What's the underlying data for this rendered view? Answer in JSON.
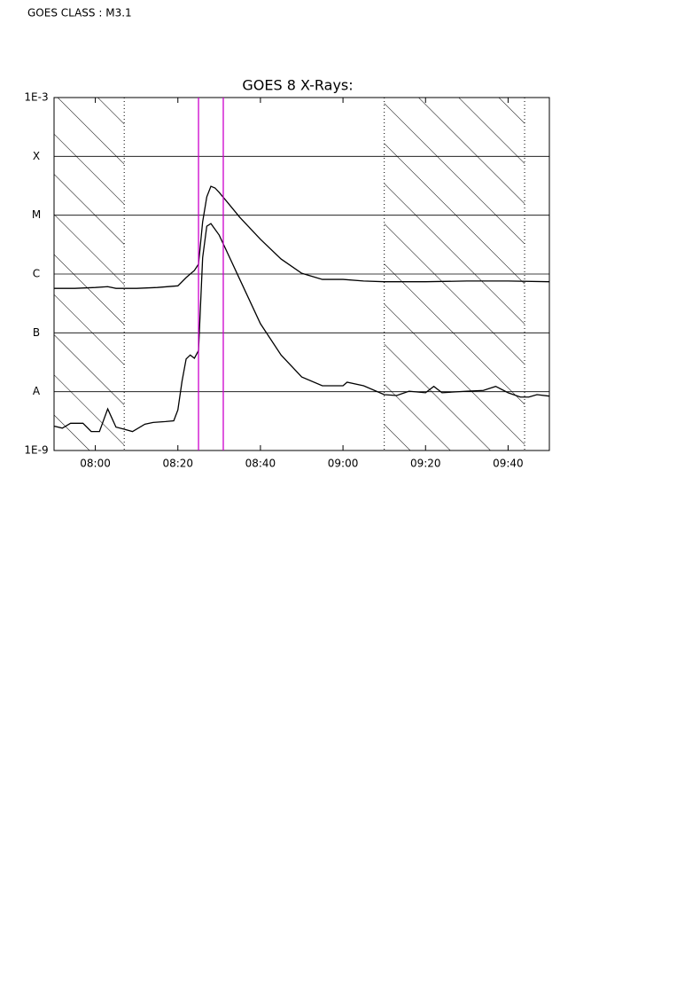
{
  "chart_data": {
    "type": "line",
    "header": "GOES CLASS : M3.1",
    "title": "GOES 8 X-Rays:",
    "log_y": true,
    "grid": true,
    "xlim": [
      "07:50",
      "09:50"
    ],
    "xticks": [
      "08:00",
      "08:20",
      "08:40",
      "09:00",
      "09:20",
      "09:40"
    ],
    "ylim": [
      1e-09,
      0.001
    ],
    "yticks": [
      {
        "value": 1e-09,
        "label": "1E-9"
      },
      {
        "value": 1e-08,
        "label": "A"
      },
      {
        "value": 1e-07,
        "label": "B"
      },
      {
        "value": 1e-06,
        "label": "C"
      },
      {
        "value": 1e-05,
        "label": "M"
      },
      {
        "value": 0.0001,
        "label": "X"
      },
      {
        "value": 0.001,
        "label": "1E-3"
      }
    ],
    "shaded_intervals": [
      [
        "07:50",
        "08:07"
      ],
      [
        "09:10",
        "09:44"
      ]
    ],
    "markers": [
      "08:25",
      "08:31"
    ],
    "marker_color": "#cc00cc",
    "series": [
      {
        "color": "#000000",
        "x": [
          "07:50",
          "07:55",
          "08:00",
          "08:03",
          "08:05",
          "08:10",
          "08:15",
          "08:20",
          "08:22",
          "08:24",
          "08:25",
          "08:26",
          "08:27",
          "08:28",
          "08:29",
          "08:30",
          "08:32",
          "08:35",
          "08:40",
          "08:45",
          "08:50",
          "08:55",
          "09:00",
          "09:05",
          "09:10",
          "09:20",
          "09:30",
          "09:40",
          "09:50"
        ],
        "values": [
          5.7e-07,
          5.7e-07,
          5.9e-07,
          6.1e-07,
          5.7e-07,
          5.7e-07,
          5.9e-07,
          6.3e-07,
          8.7e-07,
          1.15e-06,
          1.47e-06,
          7.7e-06,
          2.05e-05,
          3.1e-05,
          2.9e-05,
          2.44e-05,
          1.66e-05,
          9.2e-06,
          3.9e-06,
          1.8e-06,
          1.03e-06,
          8.1e-07,
          8.1e-07,
          7.6e-07,
          7.4e-07,
          7.4e-07,
          7.6e-07,
          7.6e-07,
          7.4e-07
        ]
      },
      {
        "color": "#000000",
        "x": [
          "07:50",
          "07:52",
          "07:54",
          "07:57",
          "07:59",
          "08:01",
          "08:03",
          "08:05",
          "08:07",
          "08:09",
          "08:12",
          "08:14",
          "08:17",
          "08:19",
          "08:20",
          "08:21",
          "08:22",
          "08:23",
          "08:24",
          "08:25",
          "08:26",
          "08:27",
          "08:28",
          "08:30",
          "08:32",
          "08:35",
          "08:40",
          "08:45",
          "08:50",
          "08:55",
          "09:00",
          "09:01",
          "09:05",
          "09:10",
          "09:13",
          "09:16",
          "09:20",
          "09:22",
          "09:24",
          "09:30",
          "09:34",
          "09:37",
          "09:40",
          "09:43",
          "09:45",
          "09:47",
          "09:50"
        ],
        "values": [
          2.6e-09,
          2.4e-09,
          2.9e-09,
          2.9e-09,
          2.1e-09,
          2.1e-09,
          5.1e-09,
          2.5e-09,
          2.3e-09,
          2.1e-09,
          2.8e-09,
          3e-09,
          3.1e-09,
          3.2e-09,
          4.9e-09,
          1.5e-08,
          3.6e-08,
          4.2e-08,
          3.7e-08,
          5e-08,
          1.9e-06,
          6.5e-06,
          7.2e-06,
          4.6e-06,
          2.3e-06,
          8.1e-07,
          1.43e-07,
          4.2e-08,
          1.78e-08,
          1.26e-08,
          1.26e-08,
          1.45e-08,
          1.26e-08,
          8.9e-09,
          8.6e-09,
          1.02e-08,
          9.6e-09,
          1.23e-08,
          9.6e-09,
          1.02e-08,
          1.05e-08,
          1.23e-08,
          9.6e-09,
          8.1e-09,
          8.1e-09,
          8.9e-09,
          8.4e-09
        ]
      }
    ]
  }
}
